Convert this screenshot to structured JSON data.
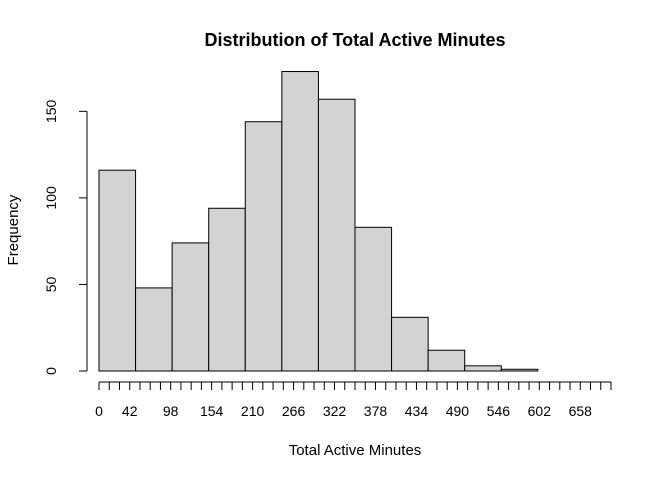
{
  "chart_data": {
    "type": "bar",
    "title": "Distribution of Total Active Minutes",
    "xlabel": "Total Active Minutes",
    "ylabel": "Frequency",
    "bin_width": 50,
    "bin_edges": [
      0,
      50,
      100,
      150,
      200,
      250,
      300,
      350,
      400,
      450,
      500,
      550,
      600,
      650,
      700
    ],
    "values": [
      116,
      48,
      74,
      94,
      144,
      173,
      157,
      83,
      31,
      12,
      3,
      1,
      0,
      0
    ],
    "xlim": [
      0,
      700
    ],
    "ylim": [
      0,
      180
    ],
    "x_tick_step": 14,
    "x_tick_labels": [
      "0",
      "42",
      "98",
      "154",
      "210",
      "266",
      "322",
      "378",
      "434",
      "490",
      "546",
      "602",
      "658"
    ],
    "y_ticks": [
      0,
      50,
      100,
      150
    ],
    "y_tick_labels": [
      "0",
      "50",
      "100",
      "150"
    ],
    "grid": false,
    "bar_color": "#d3d3d3",
    "edge_color": "#000000"
  }
}
